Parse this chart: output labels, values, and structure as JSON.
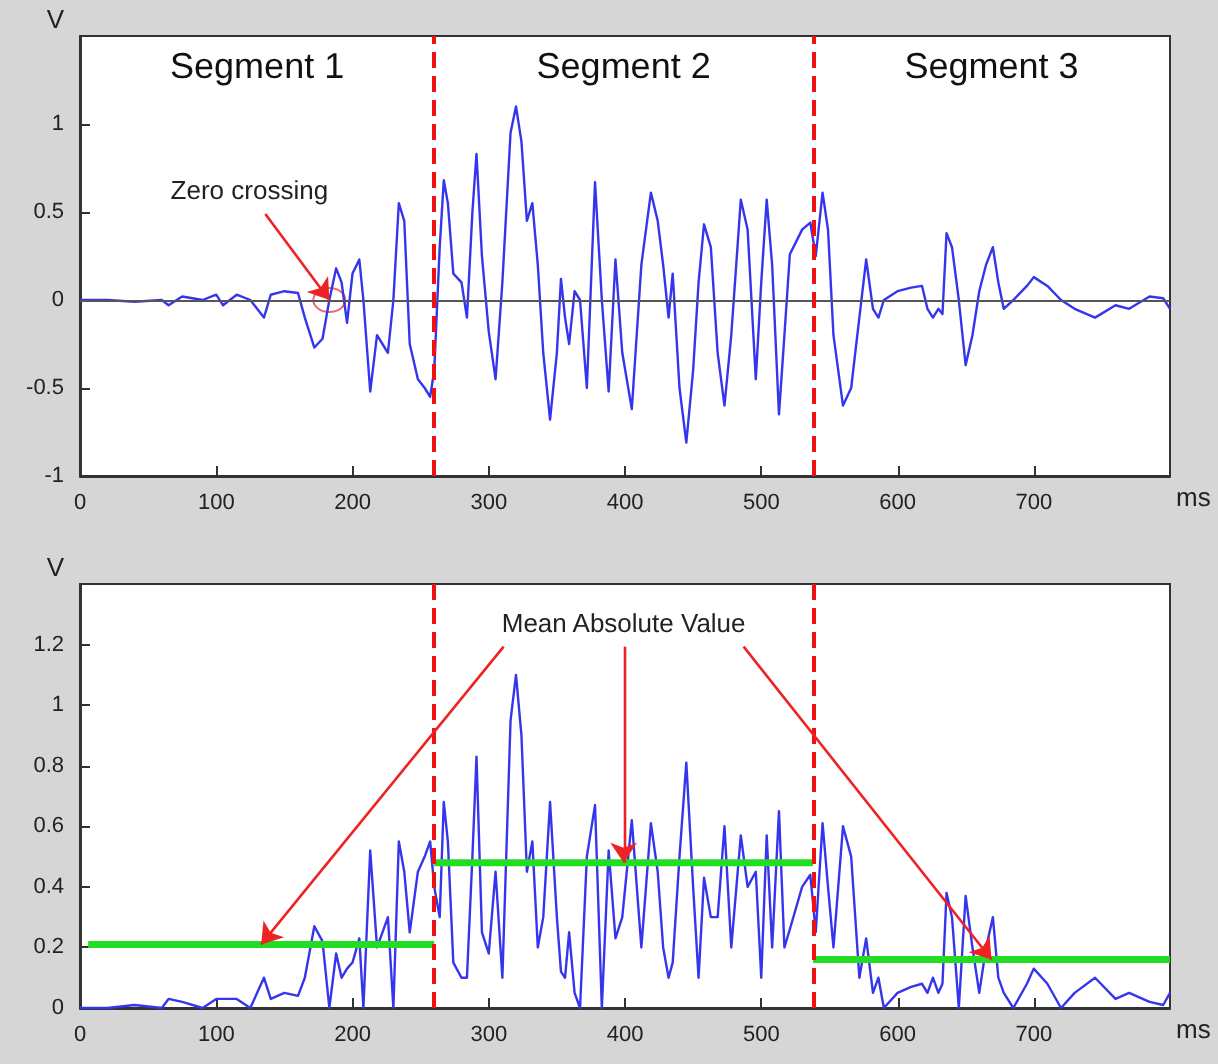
{
  "chart_data": [
    {
      "type": "line",
      "ylabel": "V",
      "xlabel": "ms",
      "xlim": [
        0,
        800
      ],
      "xticks": [
        0,
        100,
        200,
        300,
        400,
        500,
        600,
        700
      ],
      "ylim": [
        -1,
        1.5
      ],
      "yticks": [
        -1,
        -0.5,
        0,
        0.5,
        1
      ],
      "x": [
        0,
        20,
        40,
        60,
        65,
        75,
        90,
        100,
        105,
        115,
        125,
        130,
        135,
        140,
        150,
        160,
        165,
        172,
        178,
        183,
        188,
        192,
        196,
        200,
        205,
        208,
        213,
        218,
        222,
        226,
        230,
        234,
        238,
        242,
        248,
        253,
        257,
        260,
        264,
        267,
        270,
        274,
        280,
        284,
        288,
        291,
        295,
        300,
        305,
        310,
        316,
        320,
        324,
        328,
        332,
        336,
        340,
        345,
        350,
        353,
        356,
        359,
        363,
        367,
        372,
        378,
        383,
        388,
        393,
        398,
        405,
        412,
        419,
        424,
        428,
        432,
        435,
        440,
        445,
        450,
        454,
        458,
        463,
        468,
        473,
        478,
        485,
        490,
        496,
        500,
        504,
        508,
        513,
        517,
        521,
        530,
        536,
        540,
        545,
        549,
        553,
        560,
        566,
        572,
        577,
        582,
        586,
        590,
        600,
        610,
        618,
        622,
        626,
        630,
        633,
        636,
        640,
        645,
        650,
        655,
        660,
        665,
        670,
        674,
        678,
        685,
        695,
        700,
        710,
        720,
        730,
        745,
        760,
        770,
        785,
        795,
        800
      ],
      "series": [
        {
          "color": "#3535ee",
          "values": [
            0,
            0,
            -0.01,
            0,
            -0.03,
            0.02,
            0,
            0.03,
            -0.03,
            0.03,
            0,
            -0.05,
            -0.1,
            0.03,
            0.05,
            0.04,
            -0.1,
            -0.27,
            -0.22,
            0,
            0.18,
            0.1,
            -0.13,
            0.15,
            0.23,
            0,
            -0.52,
            -0.2,
            -0.25,
            -0.3,
            0,
            0.55,
            0.45,
            -0.25,
            -0.45,
            -0.5,
            -0.55,
            -0.4,
            0.3,
            0.68,
            0.55,
            0.15,
            0.1,
            -0.1,
            0.5,
            0.83,
            0.25,
            -0.18,
            -0.45,
            0.1,
            0.95,
            1.1,
            0.9,
            0.45,
            0.55,
            0.2,
            -0.3,
            -0.68,
            -0.3,
            0.12,
            -0.1,
            -0.25,
            0.05,
            0,
            -0.5,
            0.67,
            0,
            -0.52,
            0.23,
            -0.3,
            -0.62,
            0.2,
            0.61,
            0.45,
            0.2,
            -0.1,
            0.15,
            -0.5,
            -0.81,
            -0.4,
            0.1,
            0.43,
            0.3,
            -0.3,
            -0.6,
            -0.2,
            0.57,
            0.4,
            -0.45,
            0.1,
            0.57,
            0.2,
            -0.65,
            -0.2,
            0.26,
            0.4,
            0.44,
            0.25,
            0.61,
            0.4,
            -0.2,
            -0.6,
            -0.5,
            -0.1,
            0.23,
            -0.05,
            -0.1,
            0,
            0.05,
            0.07,
            0.08,
            -0.05,
            -0.1,
            -0.05,
            -0.08,
            0.38,
            0.3,
            0,
            -0.37,
            -0.2,
            0.05,
            0.2,
            0.3,
            0.1,
            -0.05,
            0,
            0.08,
            0.13,
            0.08,
            0,
            -0.05,
            -0.1,
            -0.03,
            -0.05,
            0.02,
            0.01,
            -0.05
          ]
        }
      ],
      "ref_lines": [
        {
          "axis": "y",
          "value": 0,
          "color": "#555555"
        },
        {
          "axis": "x",
          "value": 260,
          "color": "#ee1111",
          "line_style": "dashed"
        },
        {
          "axis": "x",
          "value": 538,
          "color": "#ee1111",
          "line_style": "dashed"
        }
      ],
      "annotations": [
        "Segment 1",
        "Segment 2",
        "Segment 3",
        {
          "text": "Zero crossing",
          "x": 183,
          "y": 0
        }
      ]
    },
    {
      "type": "line",
      "ylabel": "V",
      "xlabel": "ms",
      "xlim": [
        0,
        800
      ],
      "xticks": [
        0,
        100,
        200,
        300,
        400,
        500,
        600,
        700
      ],
      "ylim": [
        0,
        1.4
      ],
      "yticks": [
        0,
        0.2,
        0.4,
        0.6,
        0.8,
        1,
        1.2
      ],
      "x": [
        0,
        20,
        40,
        60,
        65,
        75,
        90,
        100,
        105,
        115,
        125,
        130,
        135,
        140,
        150,
        160,
        165,
        172,
        178,
        183,
        188,
        192,
        196,
        200,
        205,
        208,
        213,
        218,
        222,
        226,
        230,
        234,
        238,
        242,
        248,
        253,
        257,
        260,
        264,
        267,
        270,
        274,
        280,
        284,
        288,
        291,
        295,
        300,
        305,
        310,
        316,
        320,
        324,
        328,
        332,
        336,
        340,
        345,
        350,
        353,
        356,
        359,
        363,
        367,
        372,
        378,
        383,
        388,
        393,
        398,
        405,
        412,
        419,
        424,
        428,
        432,
        435,
        440,
        445,
        450,
        454,
        458,
        463,
        468,
        473,
        478,
        485,
        490,
        496,
        500,
        504,
        508,
        513,
        517,
        521,
        530,
        536,
        540,
        545,
        549,
        553,
        560,
        566,
        572,
        577,
        582,
        586,
        590,
        600,
        610,
        618,
        622,
        626,
        630,
        633,
        636,
        640,
        645,
        650,
        655,
        660,
        665,
        670,
        674,
        678,
        685,
        695,
        700,
        710,
        720,
        730,
        745,
        760,
        770,
        785,
        795,
        800
      ],
      "series": [
        {
          "color": "#3535ee",
          "values": [
            0,
            0,
            0.01,
            0,
            0.03,
            0.02,
            0,
            0.03,
            0.03,
            0.03,
            0,
            0.05,
            0.1,
            0.03,
            0.05,
            0.04,
            0.1,
            0.27,
            0.22,
            0,
            0.18,
            0.1,
            0.13,
            0.15,
            0.23,
            0,
            0.52,
            0.2,
            0.25,
            0.3,
            0,
            0.55,
            0.45,
            0.25,
            0.45,
            0.5,
            0.55,
            0.4,
            0.3,
            0.68,
            0.55,
            0.15,
            0.1,
            0.1,
            0.5,
            0.83,
            0.25,
            0.18,
            0.45,
            0.1,
            0.95,
            1.1,
            0.9,
            0.45,
            0.55,
            0.2,
            0.3,
            0.68,
            0.3,
            0.12,
            0.1,
            0.25,
            0.05,
            0,
            0.5,
            0.67,
            0,
            0.52,
            0.23,
            0.3,
            0.62,
            0.2,
            0.61,
            0.45,
            0.2,
            0.1,
            0.15,
            0.5,
            0.81,
            0.4,
            0.1,
            0.43,
            0.3,
            0.3,
            0.6,
            0.2,
            0.57,
            0.4,
            0.45,
            0.1,
            0.57,
            0.2,
            0.65,
            0.2,
            0.26,
            0.4,
            0.44,
            0.25,
            0.61,
            0.4,
            0.2,
            0.6,
            0.5,
            0.1,
            0.23,
            0.05,
            0.1,
            0,
            0.05,
            0.07,
            0.08,
            0.05,
            0.1,
            0.05,
            0.08,
            0.38,
            0.3,
            0,
            0.37,
            0.2,
            0.05,
            0.2,
            0.3,
            0.1,
            0.05,
            0,
            0.08,
            0.13,
            0.08,
            0,
            0.05,
            0.1,
            0.03,
            0.05,
            0.02,
            0.01,
            0.05
          ]
        },
        {
          "color": "#22dd22",
          "x": [
            6,
            260
          ],
          "values": [
            0.21,
            0.21
          ]
        },
        {
          "color": "#22dd22",
          "x": [
            260,
            538
          ],
          "values": [
            0.48,
            0.48
          ]
        },
        {
          "color": "#22dd22",
          "x": [
            538,
            800
          ],
          "values": [
            0.16,
            0.16
          ]
        }
      ],
      "ref_lines": [
        {
          "axis": "x",
          "value": 260,
          "color": "#ee1111",
          "line_style": "dashed"
        },
        {
          "axis": "x",
          "value": 538,
          "color": "#ee1111",
          "line_style": "dashed"
        }
      ],
      "annotations": [
        {
          "text": "Mean Absolute Value",
          "x": 399,
          "y": 0.48
        }
      ]
    }
  ]
}
